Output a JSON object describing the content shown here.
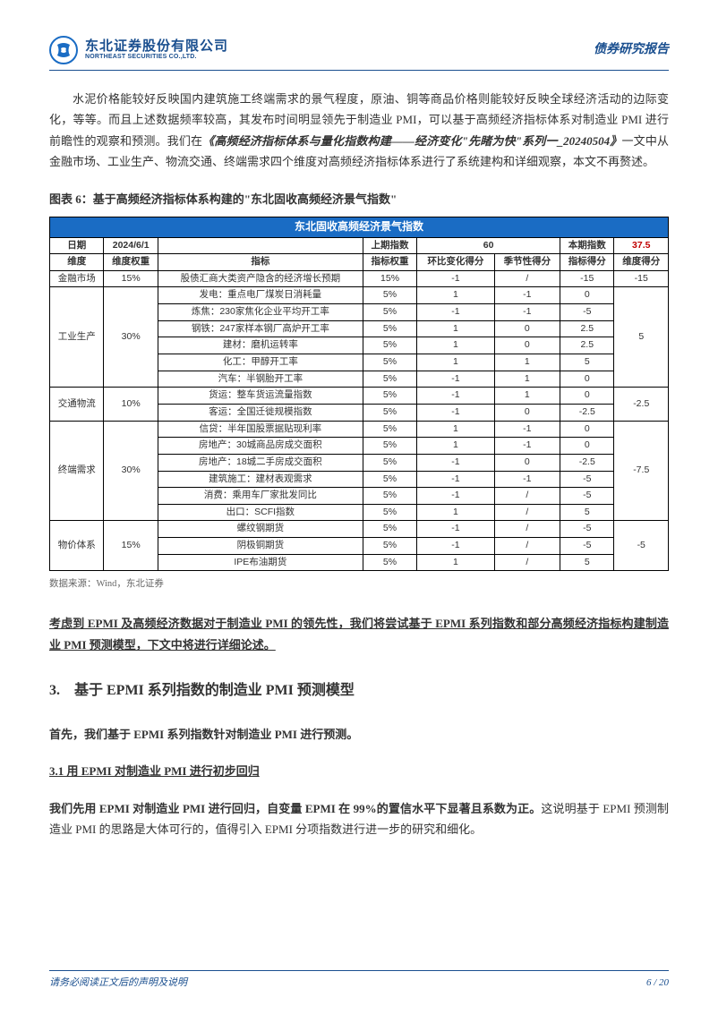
{
  "brand": {
    "logo_cn": "东北证券股份有限公司",
    "logo_en": "NORTHEAST SECURITIES CO.,LTD.",
    "logo_bg": "#1a6cc4",
    "report_type": "债券研究报告"
  },
  "body": {
    "para1_a": "水泥价格能较好反映国内建筑施工终端需求的景气程度，原油、铜等商品价格则能较好反映全球经济活动的边际变化，等等。而且上述数据频率较高，其发布时间明显领先于制造业 PMI，可以基于高频经济指标体系对制造业 PMI 进行前瞻性的观察和预测。我们在",
    "para1_ref": "《高频经济指标体系与量化指数构建——经济变化\"先睹为快\"系列一_20240504》",
    "para1_b": "一文中从金融市场、工业生产、物流交通、终端需求四个维度对高频经济指标体系进行了系统建构和详细观察，本文不再赘述。"
  },
  "figure": {
    "title": "图表 6：基于高频经济指标体系构建的\"东北固收高频经济景气指数\"",
    "table_title": "东北固收高频经济景气指数",
    "source": "数据来源：Wind，东北证券",
    "header_bg": "#1a6cc4",
    "header_color": "#ffffff",
    "red_color": "#c00000",
    "date_label": "日期",
    "date_value": "2024/6/1",
    "prev_label": "上期指数",
    "prev_value": "60",
    "curr_label": "本期指数",
    "curr_value": "37.5",
    "cols": {
      "dim": "维度",
      "dim_w": "维度权重",
      "ind": "指标",
      "ind_w": "指标权重",
      "mom": "环比变化得分",
      "seas": "季节性得分",
      "ind_score": "指标得分",
      "dim_score": "维度得分"
    },
    "dims": [
      {
        "name": "金融市场",
        "weight": "15%",
        "score": "-15",
        "rows": [
          {
            "ind": "股债汇商大类资产隐含的经济增长预期",
            "w": "15%",
            "mom": "-1",
            "seas": "/",
            "score": "-15"
          }
        ]
      },
      {
        "name": "工业生产",
        "weight": "30%",
        "score": "5",
        "rows": [
          {
            "ind": "发电：重点电厂煤炭日消耗量",
            "w": "5%",
            "mom": "1",
            "seas": "-1",
            "score": "0"
          },
          {
            "ind": "炼焦：230家焦化企业平均开工率",
            "w": "5%",
            "mom": "-1",
            "seas": "-1",
            "score": "-5"
          },
          {
            "ind": "钢铁：247家样本钢厂高炉开工率",
            "w": "5%",
            "mom": "1",
            "seas": "0",
            "score": "2.5"
          },
          {
            "ind": "建材：磨机运转率",
            "w": "5%",
            "mom": "1",
            "seas": "0",
            "score": "2.5"
          },
          {
            "ind": "化工：甲醇开工率",
            "w": "5%",
            "mom": "1",
            "seas": "1",
            "score": "5"
          },
          {
            "ind": "汽车：半钢胎开工率",
            "w": "5%",
            "mom": "-1",
            "seas": "1",
            "score": "0"
          }
        ]
      },
      {
        "name": "交通物流",
        "weight": "10%",
        "score": "-2.5",
        "rows": [
          {
            "ind": "货运：整车货运流量指数",
            "w": "5%",
            "mom": "-1",
            "seas": "1",
            "score": "0"
          },
          {
            "ind": "客运：全国迁徙规模指数",
            "w": "5%",
            "mom": "-1",
            "seas": "0",
            "score": "-2.5"
          }
        ]
      },
      {
        "name": "终端需求",
        "weight": "30%",
        "score": "-7.5",
        "rows": [
          {
            "ind": "信贷：半年国股票据贴现利率",
            "w": "5%",
            "mom": "1",
            "seas": "-1",
            "score": "0"
          },
          {
            "ind": "房地产：30城商品房成交面积",
            "w": "5%",
            "mom": "1",
            "seas": "-1",
            "score": "0"
          },
          {
            "ind": "房地产：18城二手房成交面积",
            "w": "5%",
            "mom": "-1",
            "seas": "0",
            "score": "-2.5"
          },
          {
            "ind": "建筑施工：建材表观需求",
            "w": "5%",
            "mom": "-1",
            "seas": "-1",
            "score": "-5"
          },
          {
            "ind": "消费：乘用车厂家批发同比",
            "w": "5%",
            "mom": "-1",
            "seas": "/",
            "score": "-5"
          },
          {
            "ind": "出口：SCFI指数",
            "w": "5%",
            "mom": "1",
            "seas": "/",
            "score": "5"
          }
        ]
      },
      {
        "name": "物价体系",
        "weight": "15%",
        "score": "-5",
        "rows": [
          {
            "ind": "螺纹钢期货",
            "w": "5%",
            "mom": "-1",
            "seas": "/",
            "score": "-5"
          },
          {
            "ind": "阴极铜期货",
            "w": "5%",
            "mom": "-1",
            "seas": "/",
            "score": "-5"
          },
          {
            "ind": "IPE布油期货",
            "w": "5%",
            "mom": "1",
            "seas": "/",
            "score": "5"
          }
        ]
      }
    ]
  },
  "lead": "考虑到 EPMI 及高频经济数据对于制造业 PMI 的领先性，我们将尝试基于 EPMI 系列指数和部分高频经济指标构建制造业 PMI 预测模型，下文中将进行详细论述。",
  "section3": {
    "h2": "3.　基于 EPMI 系列指数的制造业 PMI 预测模型",
    "intro": "首先，我们基于 EPMI 系列指数针对制造业 PMI 进行预测。",
    "h3": "3.1  用 EPMI 对制造业 PMI 进行初步回归",
    "p_bold": "我们先用 EPMI 对制造业 PMI 进行回归，自变量 EPMI 在 99%的置信水平下显著且系数为正。",
    "p_rest": "这说明基于 EPMI 预测制造业 PMI 的思路是大体可行的，值得引入 EPMI 分项指数进行进一步的研究和细化。"
  },
  "footer": {
    "disclaimer": "请务必阅读正文后的声明及说明",
    "page": "6 / 20",
    "color": "#1a4f8f"
  }
}
